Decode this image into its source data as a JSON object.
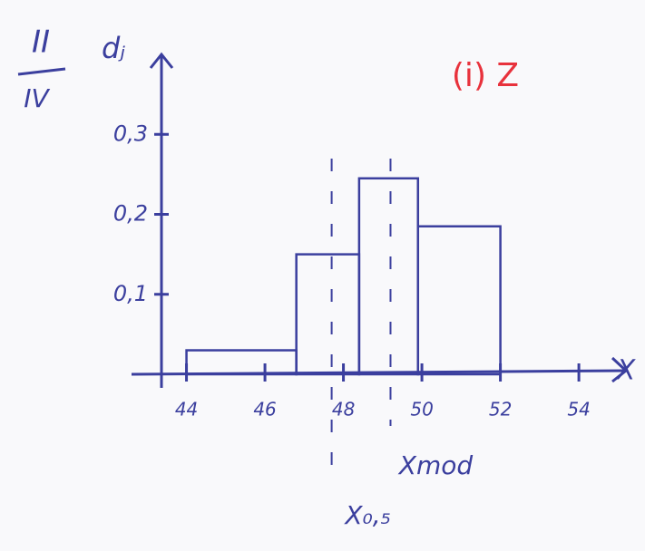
{
  "chart_data": {
    "type": "histogram",
    "title": "(i) Z",
    "corner_label": {
      "top": "II",
      "bottom": "IV"
    },
    "ylabel": "dⱼ",
    "xlabel": "X",
    "bins": [
      44,
      46.8,
      48.4,
      49.9,
      52
    ],
    "counts": [
      0.03,
      0.15,
      0.245,
      0.185
    ],
    "color": "#3b3f9e",
    "xlim": [
      42.6,
      55.2
    ],
    "ylim": [
      0,
      0.4
    ],
    "xticks": [
      44,
      46,
      48,
      50,
      52,
      54
    ],
    "yticks": [
      {
        "value": 0.1,
        "label": "0,1"
      },
      {
        "value": 0.2,
        "label": "0,2"
      },
      {
        "value": 0.3,
        "label": "0,3"
      }
    ],
    "annotations": [
      {
        "x": 47.7,
        "text": "X₀,₅"
      },
      {
        "x": 49.2,
        "text": "Xmod"
      }
    ]
  }
}
